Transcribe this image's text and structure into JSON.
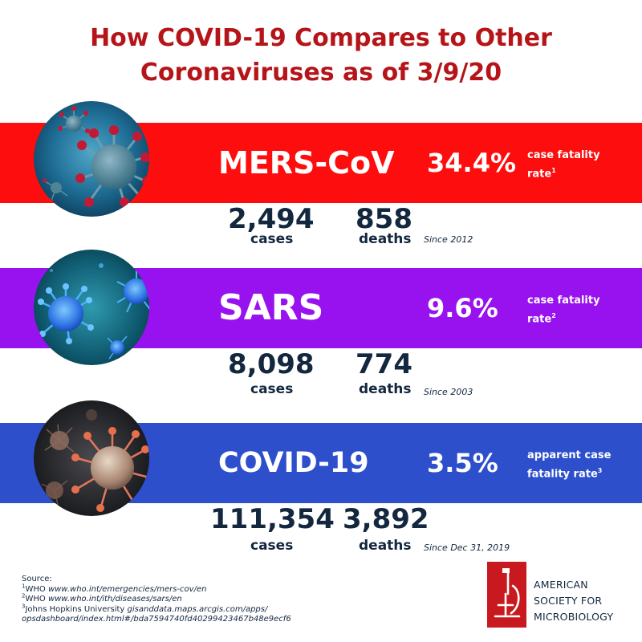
{
  "header": {
    "title_line1": "How COVID-19 Compares to Other",
    "title_line2": "Coronaviruses as of 3/9/20"
  },
  "colors": {
    "title": "#b51519",
    "mers_band": "#fd0d0d",
    "sars_band": "#9812f0",
    "covid_band": "#2d4fcb",
    "text_dark": "#13273f",
    "logo": "#c8191e"
  },
  "viruses": [
    {
      "name": "MERS-CoV",
      "rate": "34.4%",
      "rate_label_line1": "case fatality",
      "rate_label_line2": "rate",
      "rate_sup": "1",
      "cases": "2,494",
      "cases_label": "cases",
      "deaths": "858",
      "deaths_label": "deaths",
      "since": "Since 2012",
      "image_icon": "mers-virus-particle-icon"
    },
    {
      "name": "SARS",
      "rate": "9.6%",
      "rate_label_line1": "case fatality",
      "rate_label_line2": "rate",
      "rate_sup": "2",
      "cases": "8,098",
      "cases_label": "cases",
      "deaths": "774",
      "deaths_label": "deaths",
      "since": "Since 2003",
      "image_icon": "sars-virus-particle-icon"
    },
    {
      "name": "COVID-19",
      "rate": "3.5%",
      "rate_label_line1": "apparent case",
      "rate_label_line2": "fatality rate",
      "rate_sup": "3",
      "cases": "111,354",
      "cases_label": "cases",
      "deaths": "3,892",
      "deaths_label": "deaths",
      "since": "Since Dec 31, 2019",
      "image_icon": "covid-virus-particle-icon"
    }
  ],
  "source": {
    "heading": "Source:",
    "items": [
      {
        "sup": "1",
        "prefix": "WHO ",
        "url": "www.who.int/emergencies/mers-cov/en"
      },
      {
        "sup": "2",
        "prefix": "WHO ",
        "url": "www.who.int/ith/diseases/sars/en"
      },
      {
        "sup": "3",
        "prefix": "Johns Hopkins University ",
        "url": "gisanddata.maps.arcgis.com/apps/"
      }
    ],
    "url_continuation": "opsdashboard/index.html#/bda7594740fd40299423467b48e9ecf6"
  },
  "logo": {
    "icon": "microscope-icon",
    "line1": "AMERICAN",
    "line2": "SOCIETY FOR",
    "line3": "MICROBIOLOGY"
  }
}
